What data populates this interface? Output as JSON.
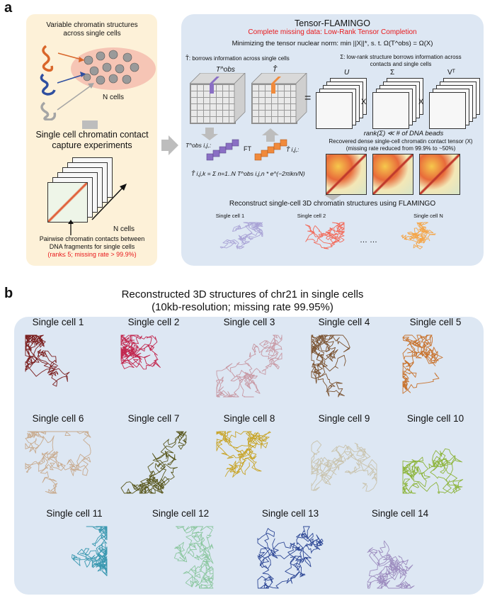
{
  "panel_a": {
    "letter": "a",
    "left": {
      "title_line1": "Variable chromatin structures",
      "title_line2": "across single cells",
      "n_cells_label": "N cells",
      "experiment_line1": "Single cell chromatin contact",
      "experiment_line2": "capture experiments",
      "stack_n_cells": "N cells",
      "pairwise_line1": "Pairwise chromatin contacts between",
      "pairwise_line2": "DNA fragments for single cells",
      "pairwise_line3": "(rank≤ 5; missing rate > 99.9%)"
    },
    "right": {
      "title": "Tensor-FLAMINGO",
      "subtitle": "Complete missing data: Low-Rank Tensor Completion",
      "minimize_text": "Minimizing the tensor nuclear norm: min ||X||*, s. t. Ω(T^obs) = Ω(X)",
      "t_hat_borrow": "T̂: borrows information across single cells",
      "sigma_borrow_line1": "Σ: low-rank structure borrows information across",
      "sigma_borrow_line2": "contacts and single cells",
      "t_obs_label": "T^obs",
      "t_hat_label": "T̂",
      "u_label": "U",
      "sigma_label": "Σ",
      "vt_label": "Vᵀ",
      "equals": "=",
      "times1": "X",
      "times2": "X",
      "rank_text": "rank(Σ) ≪ # of DNA beads",
      "t_obs_ij": "T^obs i,j,:",
      "ft_label": "FT",
      "t_hat_ij": "T̂ i,j,:",
      "formula": "T̂ i,j,k = Σ n=1..N T^obs i,j,n * e^(−2πikn/N)",
      "recovered_line1": "Recovered dense single-cell chromatin contact tensor (X)",
      "recovered_line2": "(missing rate reduced from 99.9% to ~50%)",
      "reconstruct_title": "Reconstruct single-cell 3D chromatin structures using FLAMINGO",
      "cells": [
        "Single cell 1",
        "Single cell 2",
        "Single cell N"
      ],
      "ellipsis": "… …"
    }
  },
  "panel_b": {
    "letter": "b",
    "title_line1": "Reconstructed 3D structures of chr21 in single cells",
    "title_line2": "(10kb-resolution; missing rate 99.95%)",
    "cells": [
      {
        "label": "Single cell 1",
        "color": "#7a1f1f"
      },
      {
        "label": "Single cell 2",
        "color": "#c2284f"
      },
      {
        "label": "Single cell 3",
        "color": "#c89aa5"
      },
      {
        "label": "Single cell 4",
        "color": "#7a5230"
      },
      {
        "label": "Single cell 5",
        "color": "#c8732e"
      },
      {
        "label": "Single cell 6",
        "color": "#c8ab8f"
      },
      {
        "label": "Single cell 7",
        "color": "#5b5a22"
      },
      {
        "label": "Single cell 8",
        "color": "#c8a52a"
      },
      {
        "label": "Single cell 9",
        "color": "#c9c3ad"
      },
      {
        "label": "Single cell 10",
        "color": "#8cb43a"
      },
      {
        "label": "Single cell 11",
        "color": "#3a98b0"
      },
      {
        "label": "Single cell 12",
        "color": "#8cc7a0"
      },
      {
        "label": "Single cell 13",
        "color": "#2e4896"
      },
      {
        "label": "Single cell 14",
        "color": "#9e8ec0"
      }
    ]
  },
  "colors": {
    "accent_red": "#e8191c",
    "purple": "#8a6fc4",
    "orange": "#f08a3c"
  }
}
